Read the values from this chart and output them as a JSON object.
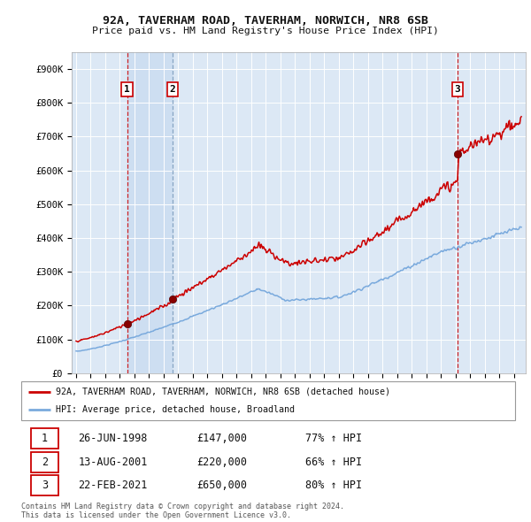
{
  "title1": "92A, TAVERHAM ROAD, TAVERHAM, NORWICH, NR8 6SB",
  "title2": "Price paid vs. HM Land Registry's House Price Index (HPI)",
  "ylim": [
    0,
    950000
  ],
  "yticks": [
    0,
    100000,
    200000,
    300000,
    400000,
    500000,
    600000,
    700000,
    800000,
    900000
  ],
  "ytick_labels": [
    "£0",
    "£100K",
    "£200K",
    "£300K",
    "£400K",
    "£500K",
    "£600K",
    "£700K",
    "£800K",
    "£900K"
  ],
  "sale_dates": [
    1998.49,
    2001.62,
    2021.14
  ],
  "sale_prices": [
    147000,
    220000,
    650000
  ],
  "sale_labels": [
    "1",
    "2",
    "3"
  ],
  "legend_line1": "92A, TAVERHAM ROAD, TAVERHAM, NORWICH, NR8 6SB (detached house)",
  "legend_line2": "HPI: Average price, detached house, Broadland",
  "table": [
    [
      "1",
      "26-JUN-1998",
      "£147,000",
      "77% ↑ HPI"
    ],
    [
      "2",
      "13-AUG-2001",
      "£220,000",
      "66% ↑ HPI"
    ],
    [
      "3",
      "22-FEB-2021",
      "£650,000",
      "80% ↑ HPI"
    ]
  ],
  "footnote1": "Contains HM Land Registry data © Crown copyright and database right 2024.",
  "footnote2": "This data is licensed under the Open Government Licence v3.0.",
  "red_color": "#cc0000",
  "blue_color": "#7aaadd",
  "bg_color": "#ffffff",
  "chart_bg": "#dce8f5",
  "grid_color": "#ffffff",
  "highlight_color": "#c8daf0"
}
